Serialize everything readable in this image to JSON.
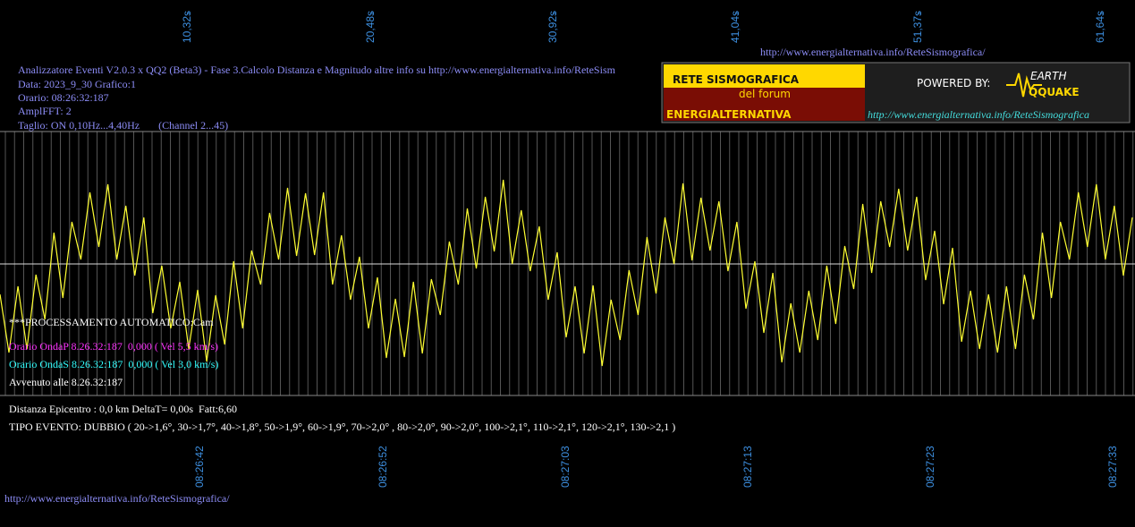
{
  "header": {
    "lines": [
      "Analizzatore Eventi V2.0.3 x QQ2 (Beta3) - Fase 3.Calcolo Distanza e Magnitudo altre info su http://www.energialternativa.info/ReteSism",
      "Data: 2023_9_30 Grafico:1",
      "Orario: 08:26:32:187",
      "AmplFFT: 2",
      "Taglio: ON 0,10Hz...4,40Hz       (Channel 2...45)"
    ],
    "url": "http://www.energialternativa.info/ReteSismografica/"
  },
  "logo": {
    "title": "RETE SISMOGRAFICA",
    "subtitle": "del forum",
    "name": "ENERGIALTERNATIVA",
    "powered": "POWERED BY:",
    "brand_top": "EARTH",
    "brand_bottom": "QQUAKE",
    "url": "http://www.energialternativa.info/ReteSismografica"
  },
  "top_marks": [
    "10,32s",
    "20,48s",
    "30,92s",
    "41,04s",
    "51,37s",
    "61,64s"
  ],
  "bottom_times": [
    "08:26:42",
    "08:26:52",
    "08:27:03",
    "08:27:13",
    "08:27:23",
    "08:27:33"
  ],
  "info": {
    "processing": "***PROCESSAMENTO AUTOMATICO:Cam",
    "wave_p": "Orario OndaP 8.26.32:187  0,000 ( Vel 5,5 km/s)",
    "wave_s": "Orario OndaS 8.26.32:187  0,000 ( Vel 3,0 km/s)",
    "occurred": "Avvenuto alle 8.26.32:187",
    "distance": "Distanza Epicentro : 0,0 km DeltaT= 0,00s  Fatt:6,60",
    "event_type": "TIPO EVENTO: DUBBIO ( 20->1,6°, 30->1,7°, 40->1,8°, 50->1,9°, 60->1,9°, 70->2,0° , 80->2,0°, 90->2,0°, 100->2,1°, 110->2,1°, 120->2,1°, 130->2,1 )"
  },
  "footer_url": "http://www.energialternativa.info/ReteSismografica/",
  "waveform": {
    "color": "#ffff33",
    "ylim": [
      -150,
      150
    ],
    "values": [
      -34,
      -99,
      -25,
      -95,
      -12,
      -62,
      35,
      -38,
      47,
      5,
      80,
      19,
      89,
      5,
      65,
      -13,
      52,
      -55,
      -2,
      -72,
      -20,
      -95,
      -29,
      -109,
      -35,
      -90,
      3,
      -72,
      15,
      -23,
      57,
      5,
      85,
      9,
      79,
      10,
      80,
      -23,
      32,
      -40,
      8,
      -72,
      -15,
      -105,
      -39,
      -104,
      -20,
      -100,
      -17,
      -57,
      25,
      -23,
      62,
      -5,
      75,
      14,
      94,
      0,
      60,
      -8,
      42,
      -40,
      13,
      -82,
      -25,
      -100,
      -24,
      -114,
      -40,
      -85,
      -7,
      -57,
      30,
      -33,
      52,
      0,
      90,
      4,
      74,
      15,
      70,
      -8,
      47,
      -50,
      3,
      -77,
      -10,
      -110,
      -44,
      -99,
      -30,
      -85,
      -2,
      -67,
      20,
      -28,
      67,
      -10,
      70,
      19,
      84,
      15,
      75,
      -18,
      37,
      -45,
      18,
      -87,
      -30,
      -95,
      -34,
      -99,
      -25,
      -95,
      -12,
      -62,
      35,
      -38,
      47,
      5,
      80,
      19,
      89,
      5,
      65,
      -13,
      52
    ]
  }
}
